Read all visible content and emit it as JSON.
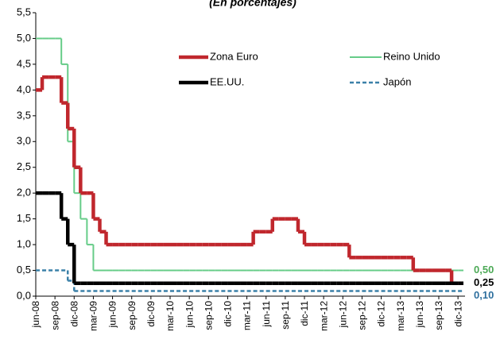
{
  "chart_data": {
    "type": "step",
    "subtitle": "(En porcentajes)",
    "categories": [
      "jun-08",
      null,
      null,
      "sep-08",
      null,
      null,
      "dic-08",
      null,
      null,
      "mar-09",
      null,
      null,
      "jun-09",
      null,
      null,
      "sep-09",
      null,
      null,
      "dic-09",
      null,
      null,
      "mar-10",
      null,
      null,
      "jun-10",
      null,
      null,
      "sep-10",
      null,
      null,
      "dic-10",
      null,
      null,
      "mar-11",
      null,
      null,
      "jun-11",
      null,
      null,
      "sep-11",
      null,
      null,
      "dic-11",
      null,
      null,
      "mar-12",
      null,
      null,
      "jun-12",
      null,
      null,
      "sep-12",
      null,
      null,
      "dic-12",
      null,
      null,
      "mar-13",
      null,
      null,
      "jun-13",
      null,
      null,
      "sep-13",
      null,
      null,
      "dic-13"
    ],
    "series": [
      {
        "name": "Zona Euro",
        "color": "#c0272d",
        "line_style": "thick",
        "values": [
          4,
          4.25,
          4.25,
          4.25,
          3.75,
          3.25,
          2.5,
          2,
          2,
          1.5,
          1.25,
          1,
          1,
          1,
          1,
          1,
          1,
          1,
          1,
          1,
          1,
          1,
          1,
          1,
          1,
          1,
          1,
          1,
          1,
          1,
          1,
          1,
          1,
          1,
          1.25,
          1.25,
          1.25,
          1.5,
          1.5,
          1.5,
          1.5,
          1.25,
          1,
          1,
          1,
          1,
          1,
          1,
          1,
          0.75,
          0.75,
          0.75,
          0.75,
          0.75,
          0.75,
          0.75,
          0.75,
          0.75,
          0.75,
          0.5,
          0.5,
          0.5,
          0.5,
          0.5,
          0.5,
          0.25,
          0.25
        ]
      },
      {
        "name": "Reino Unido",
        "color": "#66cc88",
        "line_style": "thin",
        "end_label": "0,50",
        "end_label_color": "#4daa57",
        "values": [
          5,
          5,
          5,
          5,
          4.5,
          3,
          2,
          1.5,
          1,
          0.5,
          0.5,
          0.5,
          0.5,
          0.5,
          0.5,
          0.5,
          0.5,
          0.5,
          0.5,
          0.5,
          0.5,
          0.5,
          0.5,
          0.5,
          0.5,
          0.5,
          0.5,
          0.5,
          0.5,
          0.5,
          0.5,
          0.5,
          0.5,
          0.5,
          0.5,
          0.5,
          0.5,
          0.5,
          0.5,
          0.5,
          0.5,
          0.5,
          0.5,
          0.5,
          0.5,
          0.5,
          0.5,
          0.5,
          0.5,
          0.5,
          0.5,
          0.5,
          0.5,
          0.5,
          0.5,
          0.5,
          0.5,
          0.5,
          0.5,
          0.5,
          0.5,
          0.5,
          0.5,
          0.5,
          0.5,
          0.5,
          0.5
        ]
      },
      {
        "name": "EE.UU.",
        "color": "#000000",
        "line_style": "thick",
        "end_label": "0,25",
        "end_label_color": "#000000",
        "values": [
          2,
          2,
          2,
          2,
          1.5,
          1,
          0.25,
          0.25,
          0.25,
          0.25,
          0.25,
          0.25,
          0.25,
          0.25,
          0.25,
          0.25,
          0.25,
          0.25,
          0.25,
          0.25,
          0.25,
          0.25,
          0.25,
          0.25,
          0.25,
          0.25,
          0.25,
          0.25,
          0.25,
          0.25,
          0.25,
          0.25,
          0.25,
          0.25,
          0.25,
          0.25,
          0.25,
          0.25,
          0.25,
          0.25,
          0.25,
          0.25,
          0.25,
          0.25,
          0.25,
          0.25,
          0.25,
          0.25,
          0.25,
          0.25,
          0.25,
          0.25,
          0.25,
          0.25,
          0.25,
          0.25,
          0.25,
          0.25,
          0.25,
          0.25,
          0.25,
          0.25,
          0.25,
          0.25,
          0.25,
          0.25,
          0.25
        ]
      },
      {
        "name": "Japón",
        "color": "#3a80a8",
        "line_style": "dashed",
        "end_label": "0,10",
        "end_label_color": "#2e6f9e",
        "values": [
          0.5,
          0.5,
          0.5,
          0.5,
          0.5,
          0.3,
          0.1,
          0.1,
          0.1,
          0.1,
          0.1,
          0.1,
          0.1,
          0.1,
          0.1,
          0.1,
          0.1,
          0.1,
          0.1,
          0.1,
          0.1,
          0.1,
          0.1,
          0.1,
          0.1,
          0.1,
          0.1,
          0.1,
          0.1,
          0.1,
          0.1,
          0.1,
          0.1,
          0.1,
          0.1,
          0.1,
          0.1,
          0.1,
          0.1,
          0.1,
          0.1,
          0.1,
          0.1,
          0.1,
          0.1,
          0.1,
          0.1,
          0.1,
          0.1,
          0.1,
          0.1,
          0.1,
          0.1,
          0.1,
          0.1,
          0.1,
          0.1,
          0.1,
          0.1,
          0.1,
          0.1,
          0.1,
          0.1,
          0.1,
          0.1,
          0.1,
          0.1
        ]
      }
    ],
    "ylim": [
      0,
      5.5
    ],
    "yticks": [
      {
        "value": 0,
        "label": "0,0"
      },
      {
        "value": 0.5,
        "label": "0,5"
      },
      {
        "value": 1,
        "label": "1,0"
      },
      {
        "value": 1.5,
        "label": "1,5"
      },
      {
        "value": 2,
        "label": "2,0"
      },
      {
        "value": 2.5,
        "label": "2,5"
      },
      {
        "value": 3,
        "label": "3,0"
      },
      {
        "value": 3.5,
        "label": "3,5"
      },
      {
        "value": 4,
        "label": "4,0"
      },
      {
        "value": 4.5,
        "label": "4,5"
      },
      {
        "value": 5,
        "label": "5,0"
      },
      {
        "value": 5.5,
        "label": "5,5"
      }
    ],
    "grid": false
  }
}
